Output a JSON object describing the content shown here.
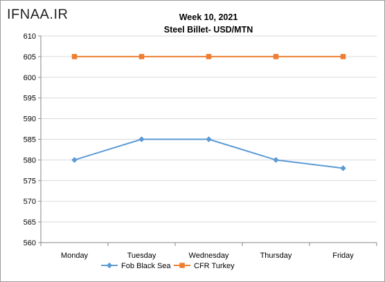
{
  "watermark": "IFNAA.IR",
  "chart_data": {
    "type": "line",
    "title": "Week 10, 2021",
    "subtitle": "Steel Billet- USD/MTN",
    "categories": [
      "Monday",
      "Tuesday",
      "Wednesday",
      "Thursday",
      "Friday"
    ],
    "series": [
      {
        "name": "Fob Black Sea",
        "values": [
          580,
          585,
          585,
          580,
          578
        ],
        "color": "#5b9bd5",
        "marker": "diamond"
      },
      {
        "name": "CFR Turkey",
        "values": [
          605,
          605,
          605,
          605,
          605
        ],
        "color": "#ed7d31",
        "marker": "square"
      }
    ],
    "ylim": [
      560,
      610
    ],
    "ytick_step": 5,
    "yticks": [
      "560",
      "565",
      "570",
      "575",
      "580",
      "585",
      "590",
      "595",
      "600",
      "605",
      "610"
    ],
    "grid": "horizontal",
    "legend": "bottom"
  }
}
